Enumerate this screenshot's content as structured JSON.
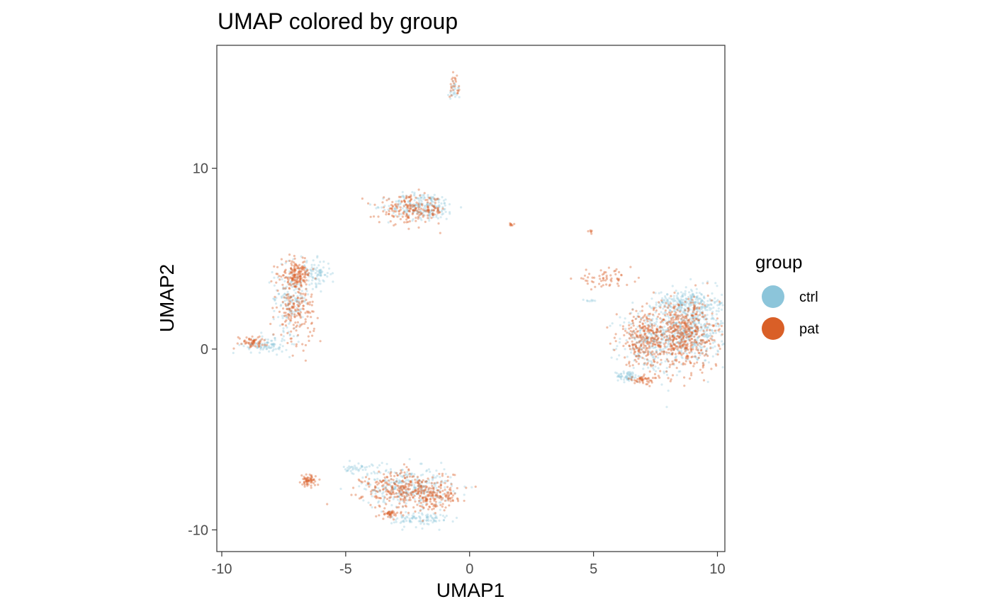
{
  "chart_data": {
    "type": "scatter",
    "title": "UMAP colored by group",
    "xlabel": "UMAP1",
    "ylabel": "UMAP2",
    "xlim": [
      -10.2,
      10.3
    ],
    "ylim": [
      -11.2,
      16.8
    ],
    "xticks": [
      -10,
      -5,
      0,
      5,
      10
    ],
    "xtick_labels": [
      "-10",
      "-5",
      "0",
      "5",
      "10"
    ],
    "yticks": [
      -10,
      0,
      10
    ],
    "ytick_labels": [
      "-10",
      "0",
      "10"
    ],
    "grid": false,
    "legend": {
      "title": "group",
      "position": "right",
      "entries": [
        {
          "label": "ctrl",
          "color": "#8CC5DA"
        },
        {
          "label": "pat",
          "color": "#D95F27"
        }
      ]
    },
    "series": [
      {
        "name": "ctrl",
        "color": "#8CC5DA",
        "opacity": 0.35,
        "clusters": [
          {
            "cx": 9.0,
            "cy": 1.2,
            "sx": 0.9,
            "sy": 1.4,
            "n": 500
          },
          {
            "cx": 8.6,
            "cy": 2.6,
            "sx": 0.7,
            "sy": 0.4,
            "n": 150
          },
          {
            "cx": 7.2,
            "cy": 0.4,
            "sx": 0.8,
            "sy": 1.2,
            "n": 250
          },
          {
            "cx": 6.4,
            "cy": -1.5,
            "sx": 0.3,
            "sy": 0.2,
            "n": 60
          },
          {
            "cx": -1.9,
            "cy": 7.9,
            "sx": 0.9,
            "sy": 0.5,
            "n": 220
          },
          {
            "cx": -7.2,
            "cy": 2.8,
            "sx": 0.5,
            "sy": 1.2,
            "n": 160
          },
          {
            "cx": -6.2,
            "cy": 4.2,
            "sx": 0.4,
            "sy": 0.5,
            "n": 80
          },
          {
            "cx": -8.2,
            "cy": 0.2,
            "sx": 0.6,
            "sy": 0.3,
            "n": 90
          },
          {
            "cx": -2.5,
            "cy": -7.6,
            "sx": 1.2,
            "sy": 0.7,
            "n": 300
          },
          {
            "cx": -2.0,
            "cy": -9.4,
            "sx": 0.8,
            "sy": 0.3,
            "n": 100
          },
          {
            "cx": -4.5,
            "cy": -6.6,
            "sx": 0.4,
            "sy": 0.2,
            "n": 40
          },
          {
            "cx": -0.6,
            "cy": 14.3,
            "sx": 0.15,
            "sy": 0.4,
            "n": 25
          },
          {
            "cx": 4.8,
            "cy": 2.7,
            "sx": 0.15,
            "sy": 0.06,
            "n": 8
          }
        ]
      },
      {
        "name": "pat",
        "color": "#D95F27",
        "opacity": 0.4,
        "clusters": [
          {
            "cx": 8.6,
            "cy": 0.8,
            "sx": 1.0,
            "sy": 1.3,
            "n": 550
          },
          {
            "cx": 7.0,
            "cy": 0.6,
            "sx": 0.7,
            "sy": 1.0,
            "n": 220
          },
          {
            "cx": 7.0,
            "cy": -1.7,
            "sx": 0.4,
            "sy": 0.15,
            "n": 50
          },
          {
            "cx": 5.4,
            "cy": 3.9,
            "sx": 0.8,
            "sy": 0.3,
            "n": 60
          },
          {
            "cx": -2.3,
            "cy": 7.7,
            "sx": 0.9,
            "sy": 0.5,
            "n": 200
          },
          {
            "cx": -7.0,
            "cy": 4.1,
            "sx": 0.4,
            "sy": 0.5,
            "n": 180
          },
          {
            "cx": -7.0,
            "cy": 2.0,
            "sx": 0.5,
            "sy": 1.0,
            "n": 160
          },
          {
            "cx": -8.8,
            "cy": 0.4,
            "sx": 0.4,
            "sy": 0.2,
            "n": 60
          },
          {
            "cx": -2.5,
            "cy": -7.8,
            "sx": 1.2,
            "sy": 0.7,
            "n": 320
          },
          {
            "cx": -1.4,
            "cy": -8.2,
            "sx": 0.6,
            "sy": 0.5,
            "n": 100
          },
          {
            "cx": -6.5,
            "cy": -7.3,
            "sx": 0.2,
            "sy": 0.2,
            "n": 60
          },
          {
            "cx": -3.2,
            "cy": -9.1,
            "sx": 0.3,
            "sy": 0.15,
            "n": 40
          },
          {
            "cx": -0.6,
            "cy": 14.5,
            "sx": 0.15,
            "sy": 0.4,
            "n": 25
          },
          {
            "cx": 1.7,
            "cy": 6.9,
            "sx": 0.08,
            "sy": 0.05,
            "n": 8
          },
          {
            "cx": 4.9,
            "cy": 6.5,
            "sx": 0.05,
            "sy": 0.08,
            "n": 6
          }
        ]
      }
    ]
  }
}
